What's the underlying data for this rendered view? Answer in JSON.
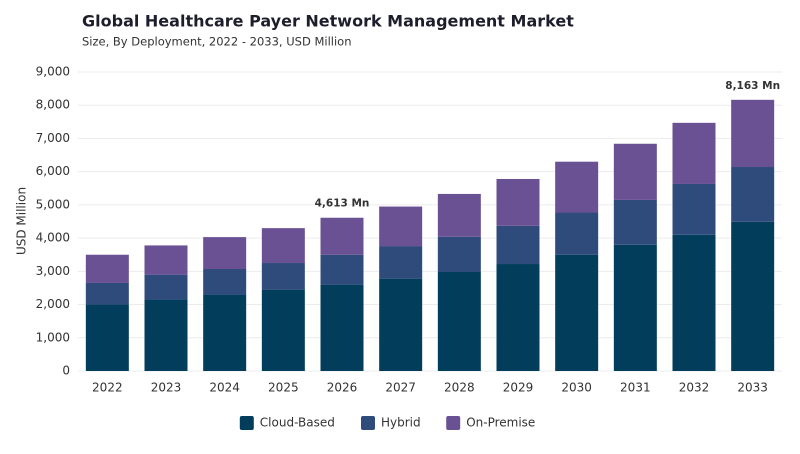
{
  "chart_data": {
    "type": "stacked-bar",
    "title": "Global Healthcare Payer Network Management Market",
    "subtitle": "Size, By Deployment, 2022 - 2033, USD Million",
    "y_label": "USD Million",
    "categories": [
      "2022",
      "2023",
      "2024",
      "2025",
      "2026",
      "2027",
      "2028",
      "2029",
      "2030",
      "2031",
      "2032",
      "2033"
    ],
    "series": [
      {
        "name": "Cloud-Based",
        "color": "#023e5c",
        "values": [
          2000,
          2150,
          2300,
          2450,
          2600,
          2780,
          2980,
          3220,
          3500,
          3800,
          4100,
          4490
        ]
      },
      {
        "name": "Hybrid",
        "color": "#2f4b7c",
        "values": [
          650,
          750,
          770,
          800,
          900,
          980,
          1060,
          1150,
          1270,
          1350,
          1530,
          1650
        ]
      },
      {
        "name": "On-Premise",
        "color": "#6a5193",
        "values": [
          850,
          880,
          960,
          1050,
          1113,
          1190,
          1290,
          1410,
          1530,
          1690,
          1840,
          2023
        ]
      }
    ],
    "ylim": [
      0,
      9000
    ],
    "yticks": [
      0,
      {
        "value": 1000,
        "label": "1,000"
      },
      {
        "value": 2000,
        "label": "2,000"
      },
      {
        "value": 3000,
        "label": "3,000"
      },
      {
        "value": 4000,
        "label": "4,000"
      },
      {
        "value": 5000,
        "label": "5,000"
      },
      {
        "value": 6000,
        "label": "6,000"
      },
      {
        "value": 7000,
        "label": "7,000"
      },
      {
        "value": 8000,
        "label": "8,000"
      },
      {
        "value": 9000,
        "label": "9,000"
      }
    ],
    "grid": true,
    "legend": "bottom",
    "annotations": [
      {
        "x": "2026",
        "value": 4613,
        "label": "4,613 Mn"
      },
      {
        "x": "2033",
        "value": 8163,
        "label": "8,163 Mn"
      }
    ]
  }
}
